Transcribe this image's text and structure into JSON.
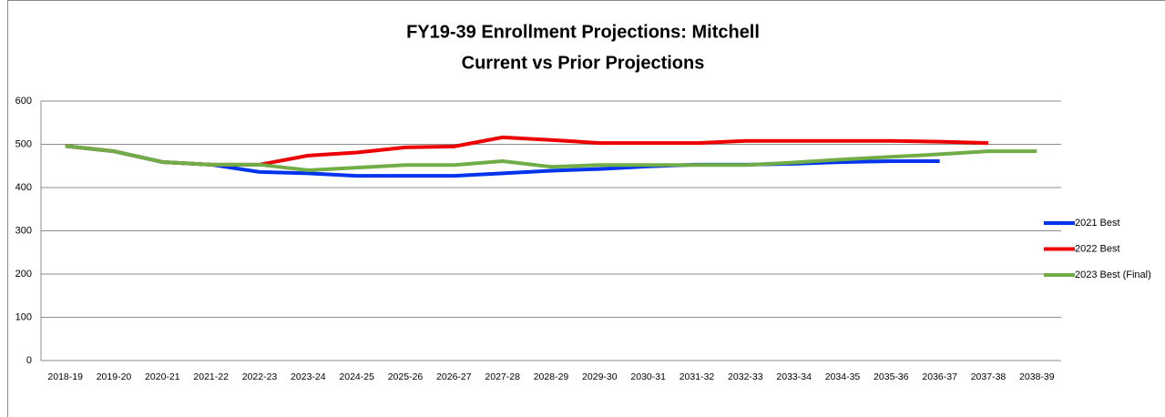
{
  "chart_data": {
    "type": "line",
    "title": "FY19-39 Enrollment Projections: Mitchell",
    "subtitle": "Current vs Prior Projections",
    "categories": [
      "2018-19",
      "2019-20",
      "2020-21",
      "2021-22",
      "2022-23",
      "2023-24",
      "2024-25",
      "2025-26",
      "2026-27",
      "2027-28",
      "2028-29",
      "2029-30",
      "2030-31",
      "2031-32",
      "2032-33",
      "2033-34",
      "2034-35",
      "2035-36",
      "2036-37",
      "2037-38",
      "2038-39"
    ],
    "series": [
      {
        "name": "2021 Best",
        "color": "#0033ee",
        "values": [
          496,
          484,
          459,
          453,
          436,
          433,
          427,
          427,
          427,
          433,
          439,
          443,
          449,
          453,
          453,
          455,
          459,
          461,
          461,
          null,
          null
        ]
      },
      {
        "name": "2022 Best",
        "color": "#ee0000",
        "values": [
          496,
          484,
          459,
          453,
          453,
          474,
          481,
          493,
          495,
          516,
          510,
          503,
          503,
          503,
          508,
          508,
          508,
          508,
          506,
          503,
          null
        ]
      },
      {
        "name": "2023 Best (Final)",
        "color": "#70ad47",
        "values": [
          496,
          484,
          459,
          453,
          453,
          440,
          446,
          452,
          452,
          461,
          448,
          452,
          452,
          452,
          452,
          458,
          465,
          471,
          477,
          484,
          484
        ]
      }
    ],
    "ylim": [
      0,
      600
    ],
    "yticks": [
      0,
      100,
      200,
      300,
      400,
      500,
      600
    ],
    "grid": true,
    "legend": "right"
  }
}
